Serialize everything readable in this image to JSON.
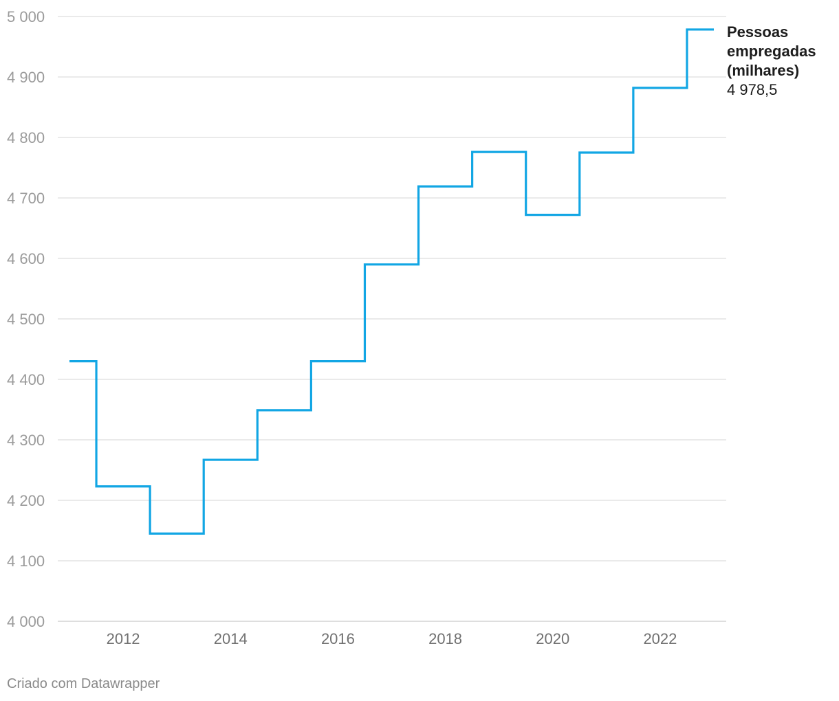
{
  "chart_data": {
    "type": "line",
    "line_style": "step",
    "x": [
      2011,
      2012,
      2013,
      2014,
      2015,
      2016,
      2017,
      2018,
      2019,
      2020,
      2021,
      2022,
      2023
    ],
    "series": [
      {
        "name": "Pessoas empregadas (milhares)",
        "name_lines": [
          "Pessoas",
          "empregadas",
          "(milhares)"
        ],
        "values": [
          4430,
          4223,
          4145,
          4267,
          4349,
          4430,
          4590,
          4719,
          4776,
          4672,
          4775,
          4882,
          4978.5
        ],
        "color": "#12a6e4",
        "last_value_label": "4 978,5"
      }
    ],
    "xlim": [
      2011,
      2023
    ],
    "ylim": [
      4000,
      5000
    ],
    "x_ticks": [
      2012,
      2014,
      2016,
      2018,
      2020,
      2022
    ],
    "x_tick_labels": [
      "2012",
      "2014",
      "2016",
      "2018",
      "2020",
      "2022"
    ],
    "y_ticks": [
      4000,
      4100,
      4200,
      4300,
      4400,
      4500,
      4600,
      4700,
      4800,
      4900,
      5000
    ],
    "y_tick_labels": [
      "4 000",
      "4 100",
      "4 200",
      "4 300",
      "4 400",
      "4 500",
      "4 600",
      "4 700",
      "4 800",
      "4 900",
      "5 000"
    ],
    "grid": "horizontal",
    "legend": "direct label at line end"
  },
  "footer": {
    "credit": "Criado com Datawrapper"
  }
}
